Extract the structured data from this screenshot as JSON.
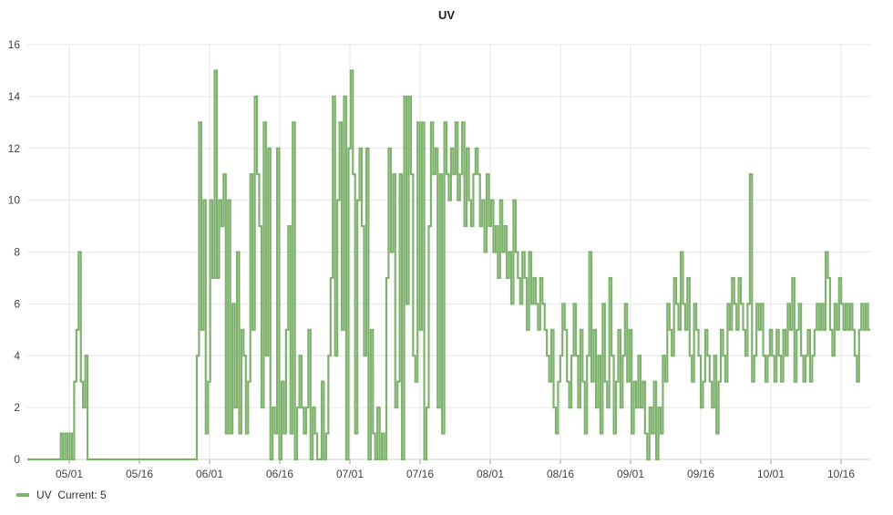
{
  "chart_data": {
    "type": "line",
    "title": "UV",
    "xlabel": "",
    "ylabel": "",
    "ylim": [
      0,
      16
    ],
    "y_ticks": [
      0,
      2,
      4,
      6,
      8,
      10,
      12,
      14,
      16
    ],
    "x_tick_labels": [
      "05/01",
      "05/16",
      "06/01",
      "06/16",
      "07/01",
      "07/16",
      "08/01",
      "08/16",
      "09/01",
      "09/16",
      "10/01",
      "10/16"
    ],
    "grid": true,
    "legend_position": "bottom-left",
    "series": [
      {
        "name": "UV",
        "legend_text": "UV  Current: 5",
        "color": "#7eb26d",
        "values": [
          0,
          0,
          0,
          0,
          0,
          0,
          0,
          0,
          0,
          0,
          0,
          0,
          0,
          0,
          0,
          1,
          0,
          1,
          0,
          1,
          0,
          3,
          5,
          8,
          3,
          2,
          4,
          0,
          0,
          0,
          0,
          0,
          0,
          0,
          0,
          0,
          0,
          0,
          0,
          0,
          0,
          0,
          0,
          0,
          0,
          0,
          0,
          0,
          0,
          0,
          0,
          0,
          0,
          0,
          0,
          0,
          0,
          0,
          0,
          0,
          0,
          0,
          0,
          0,
          0,
          0,
          0,
          0,
          0,
          0,
          0,
          0,
          0,
          0,
          0,
          0,
          4,
          13,
          5,
          10,
          1,
          3,
          10,
          7,
          15,
          7,
          10,
          9,
          11,
          1,
          10,
          1,
          6,
          2,
          8,
          1,
          5,
          4,
          1,
          3,
          11,
          5,
          14,
          11,
          9,
          2,
          13,
          4,
          12,
          0,
          2,
          1,
          12,
          0,
          3,
          1,
          5,
          9,
          1,
          13,
          0,
          2,
          4,
          2,
          1,
          2,
          5,
          0,
          2,
          1,
          0,
          0,
          3,
          0,
          1,
          4,
          7,
          14,
          4,
          10,
          13,
          5,
          14,
          0,
          12,
          15,
          11,
          1,
          10,
          12,
          9,
          4,
          12,
          0,
          5,
          1,
          0,
          2,
          0,
          1,
          0,
          7,
          12,
          8,
          11,
          2,
          3,
          11,
          0,
          14,
          6,
          14,
          11,
          4,
          3,
          13,
          5,
          13,
          0,
          2,
          9,
          13,
          11,
          12,
          2,
          11,
          1,
          13,
          11,
          10,
          12,
          11,
          13,
          10,
          11,
          13,
          9,
          12,
          10,
          9,
          11,
          12,
          11,
          9,
          10,
          8,
          11,
          9,
          10,
          8,
          9,
          7,
          10,
          8,
          9,
          7,
          8,
          6,
          10,
          8,
          7,
          6,
          8,
          7,
          5,
          8,
          6,
          7,
          6,
          5,
          7,
          6,
          5,
          4,
          3,
          5,
          2,
          1,
          3,
          4,
          6,
          5,
          3,
          2,
          4,
          6,
          4,
          2,
          5,
          3,
          1,
          4,
          8,
          3,
          5,
          2,
          4,
          1,
          6,
          3,
          2,
          7,
          4,
          1,
          3,
          5,
          2,
          4,
          6,
          3,
          5,
          1,
          3,
          2,
          4,
          2,
          3,
          1,
          0,
          2,
          1,
          3,
          0,
          2,
          1,
          4,
          3,
          6,
          5,
          4,
          7,
          6,
          5,
          8,
          6,
          5,
          7,
          4,
          3,
          6,
          5,
          4,
          2,
          3,
          5,
          4,
          3,
          2,
          4,
          1,
          3,
          5,
          4,
          3,
          6,
          5,
          7,
          6,
          5,
          7,
          6,
          5,
          4,
          6,
          11,
          3,
          4,
          6,
          5,
          6,
          4,
          3,
          4,
          5,
          4,
          3,
          5,
          4,
          3,
          5,
          4,
          6,
          5,
          7,
          3,
          5,
          6,
          4,
          3,
          4,
          5,
          3,
          4,
          5,
          6,
          5,
          6,
          5,
          8,
          7,
          5,
          4,
          6,
          5,
          7,
          6,
          5,
          6,
          5,
          6,
          5,
          4,
          3,
          5,
          6,
          5,
          6,
          5
        ]
      }
    ]
  }
}
